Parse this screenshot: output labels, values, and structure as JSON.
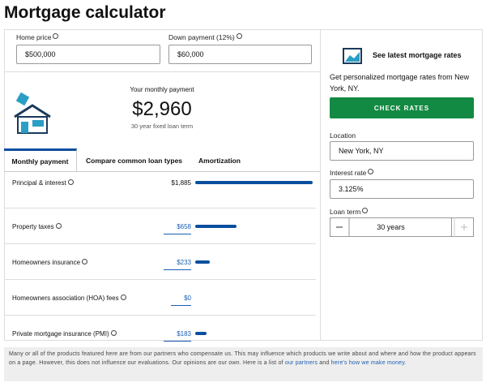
{
  "header": {
    "title": "Mortgage calculator"
  },
  "inputs": {
    "home_price": {
      "label": "Home price",
      "value": "$500,000"
    },
    "down_payment": {
      "label": "Down payment (12%)",
      "value": "$60,000"
    }
  },
  "summary": {
    "label": "Your monthly payment",
    "amount": "$2,960",
    "term": "30 year fixed loan term"
  },
  "tabs": [
    "Monthly payment",
    "Compare common loan types",
    "Amortization"
  ],
  "breakdown": [
    {
      "label": "Principal & interest",
      "amount": {
        "value": 1885,
        "label": "$1,885"
      }
    },
    {
      "label": "Property taxes",
      "amount": {
        "value": 658,
        "label": "$658"
      }
    },
    {
      "label": "Homeowners insurance",
      "amount": {
        "value": 233,
        "label": "$233"
      }
    },
    {
      "label": "Homeowners association (HOA) fees",
      "amount": {
        "value": 0,
        "label": "$0"
      }
    },
    {
      "label": "Private mortgage insurance (PMI)",
      "amount": {
        "value": 183,
        "label": "$183"
      }
    }
  ],
  "rates": {
    "title": "See latest mortgage rates",
    "text": "Get personalized mortgage rates from New York, NY.",
    "button": "CHECK RATES",
    "location": {
      "label": "Location",
      "value": "New York, NY"
    },
    "interest_rate": {
      "label": "Interest rate",
      "value": "3.125%"
    },
    "loan_term": {
      "label": "Loan term",
      "value": "30 years"
    }
  },
  "footer": {
    "text": "Many or all of the products featured here are from our partners who compensate us. This may influence which products we write about and where and how the product appears on a page. However, this does not influence our evaluations. Our opinions are our own. Here is a list of",
    "link1": "our partners",
    "middle": "and",
    "link2": "here's how we make money."
  }
}
